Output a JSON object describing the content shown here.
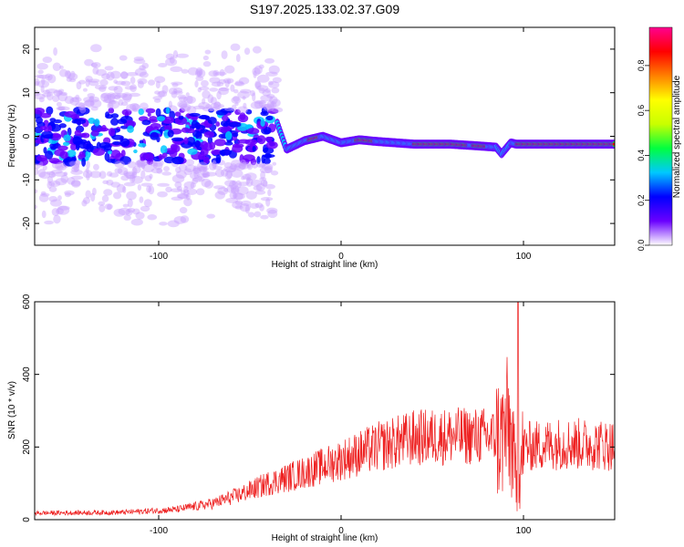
{
  "figure_title": "S197.2025.133.02.37.G09",
  "chart_data": [
    {
      "type": "heatmap",
      "title": "S197.2025.133.02.37.G09",
      "xlabel": "Height of straight line (km)",
      "ylabel": "Frequency (Hz)",
      "xlim": [
        -168,
        150
      ],
      "ylim": [
        -25,
        25
      ],
      "xticks": [
        -100,
        0,
        100
      ],
      "yticks": [
        -20,
        -10,
        0,
        10,
        20
      ],
      "colorbar": {
        "label": "Normalized spectral amplitude",
        "range": [
          0.0,
          0.97
        ],
        "ticks": [
          0.0,
          0.2,
          0.4,
          0.6,
          0.8
        ],
        "colormap": "white-violet-blue-cyan-green-yellow-orange-red-magenta",
        "colors": [
          "#ffffff",
          "#6a00ff",
          "#0000ff",
          "#00c8ff",
          "#00ff40",
          "#c8ff00",
          "#ffff00",
          "#ff8000",
          "#ff0000",
          "#ff0090"
        ]
      },
      "ridge": {
        "description_points": [
          {
            "x": -35,
            "y": 3.0
          },
          {
            "x": -30,
            "y": -3.0
          },
          {
            "x": -20,
            "y": -1.0
          },
          {
            "x": -10,
            "y": 0.0
          },
          {
            "x": 0,
            "y": -1.5
          },
          {
            "x": 10,
            "y": -0.8
          },
          {
            "x": 20,
            "y": -1.2
          },
          {
            "x": 40,
            "y": -1.8
          },
          {
            "x": 60,
            "y": -1.8
          },
          {
            "x": 75,
            "y": -2.2
          },
          {
            "x": 85,
            "y": -2.5
          },
          {
            "x": 88,
            "y": -4.0
          },
          {
            "x": 93,
            "y": -1.5
          },
          {
            "x": 96,
            "y": -1.8
          },
          {
            "x": 120,
            "y": -1.8
          },
          {
            "x": 150,
            "y": -1.8
          }
        ],
        "high_amplitude_segments": [
          [
            -18,
            -12
          ],
          [
            8,
            18
          ],
          [
            40,
            70
          ],
          [
            72,
            80
          ],
          [
            96,
            150
          ]
        ]
      },
      "noise_region": {
        "x_range": [
          -168,
          -35
        ],
        "center_hz": 0,
        "spread_hz": 22
      }
    },
    {
      "type": "line",
      "xlabel": "Height of straight line (km)",
      "ylabel": "SNR (10 * v/v)",
      "xlim": [
        -168,
        150
      ],
      "ylim": [
        0,
        600
      ],
      "xticks": [
        -100,
        0,
        100
      ],
      "yticks": [
        0,
        200,
        400,
        600
      ],
      "color": "#ee2222",
      "envelope": [
        {
          "x": -168,
          "y": 18
        },
        {
          "x": -120,
          "y": 20
        },
        {
          "x": -90,
          "y": 28
        },
        {
          "x": -70,
          "y": 45
        },
        {
          "x": -55,
          "y": 70
        },
        {
          "x": -40,
          "y": 100
        },
        {
          "x": -20,
          "y": 130
        },
        {
          "x": 0,
          "y": 165
        },
        {
          "x": 20,
          "y": 200
        },
        {
          "x": 40,
          "y": 225
        },
        {
          "x": 60,
          "y": 230
        },
        {
          "x": 80,
          "y": 230
        },
        {
          "x": 88,
          "y": 225
        },
        {
          "x": 92,
          "y": 260
        },
        {
          "x": 95,
          "y": 150
        },
        {
          "x": 97,
          "y": 80
        },
        {
          "x": 100,
          "y": 200
        },
        {
          "x": 120,
          "y": 210
        },
        {
          "x": 150,
          "y": 205
        }
      ],
      "peak": {
        "x": 97,
        "y": 600
      }
    }
  ]
}
